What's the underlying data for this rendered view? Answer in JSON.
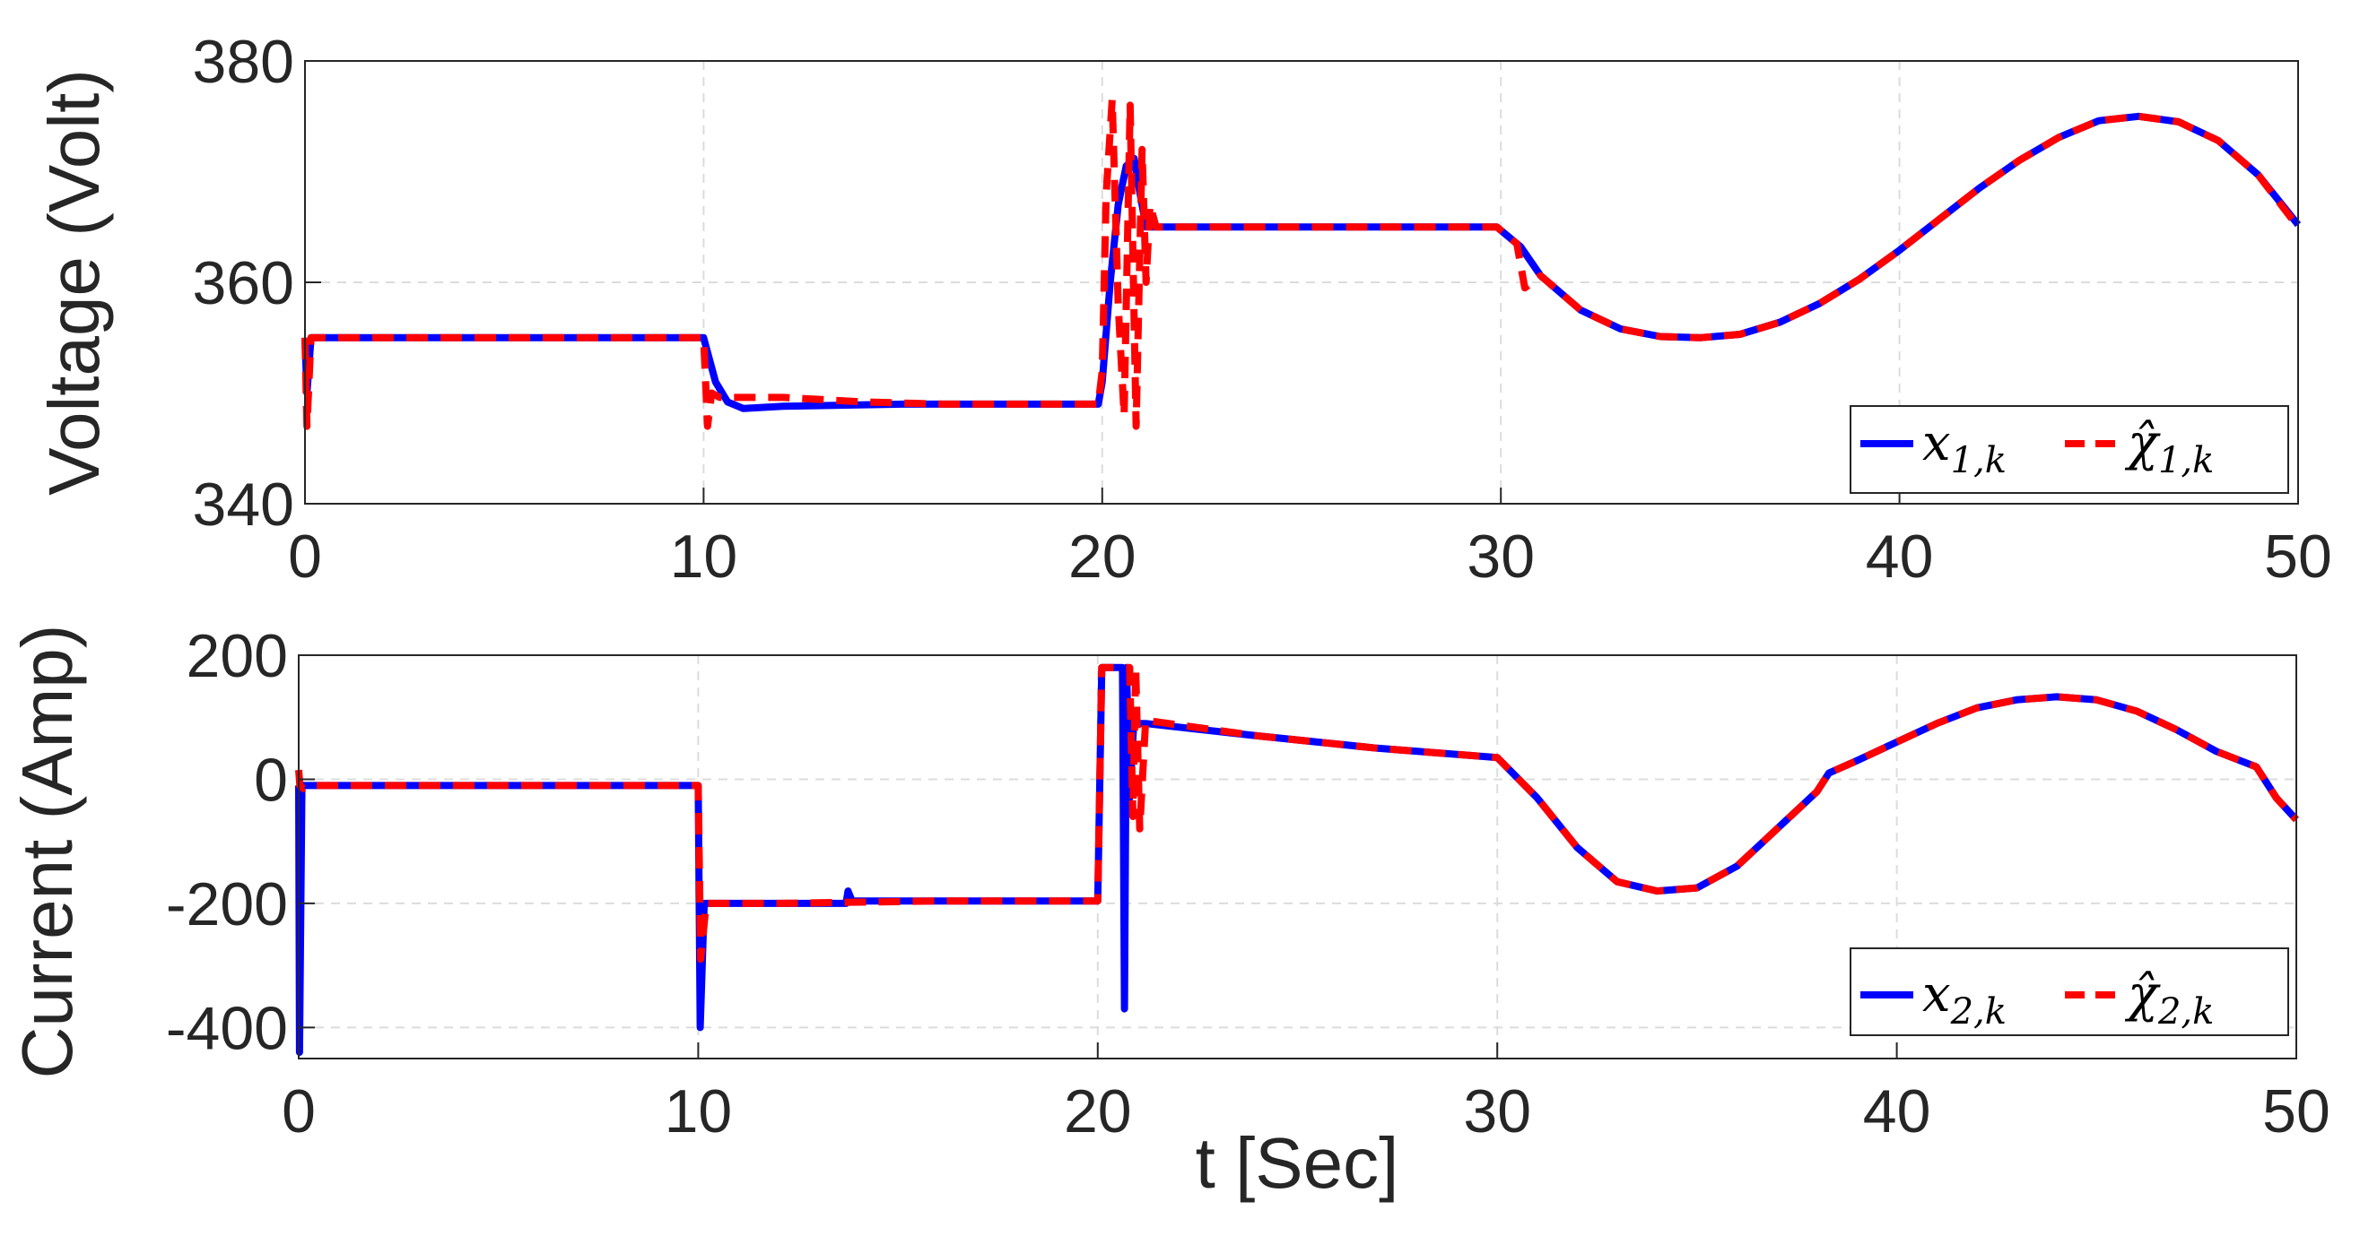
{
  "chart_data": [
    {
      "type": "line",
      "title": "",
      "xlabel": "",
      "ylabel": "Voltage (Volt)",
      "xlim": [
        0,
        50
      ],
      "ylim": [
        340,
        380
      ],
      "x_ticks": [
        "0",
        "10",
        "20",
        "30",
        "40",
        "50"
      ],
      "y_ticks": [
        "340",
        "360",
        "380"
      ],
      "grid": true,
      "legend_position": "bottom-right",
      "series": [
        {
          "name": "x1,k",
          "legend_main": "x",
          "legend_sub": "1,k",
          "color": "#0000FF",
          "style": "solid",
          "x": [
            0,
            0.05,
            0.15,
            5,
            9.9,
            10.0,
            10.3,
            10.6,
            11,
            12,
            15,
            19.9,
            20.0,
            20.2,
            20.4,
            20.6,
            20.8,
            20.95,
            21.1,
            21.3,
            25,
            29.9,
            30.5,
            31,
            32,
            33,
            34,
            35,
            36,
            37,
            38,
            39,
            40,
            41,
            42,
            43,
            44,
            45,
            46,
            47,
            48,
            49,
            50
          ],
          "values": [
            355,
            350,
            355,
            355,
            355,
            355,
            351,
            349.2,
            348.6,
            348.8,
            349,
            349,
            351,
            360,
            367,
            370.5,
            371.2,
            368,
            365,
            365,
            365,
            365,
            363.2,
            360.6,
            357.5,
            355.8,
            355.1,
            355,
            355.3,
            356.4,
            358.1,
            360.3,
            362.9,
            365.7,
            368.5,
            371,
            373.1,
            374.6,
            375,
            374.5,
            372.8,
            369.7,
            365.2
          ]
        },
        {
          "name": "χ̂1,k",
          "legend_main": "χ̂",
          "legend_sub": "1,k",
          "color": "#FF0000",
          "style": "dashed",
          "x": [
            0,
            0.05,
            0.15,
            5,
            9.9,
            10.0,
            10.1,
            10.2,
            10.4,
            12,
            14,
            16,
            19.9,
            20.0,
            20.1,
            20.25,
            20.4,
            20.55,
            20.7,
            20.85,
            21.0,
            21.1,
            21.2,
            21.35,
            25,
            29.9,
            30.4,
            30.6,
            31,
            32,
            33,
            34,
            35,
            36,
            37,
            38,
            39,
            40,
            41,
            42,
            43,
            44,
            45,
            46,
            47,
            48,
            49,
            50
          ],
          "values": [
            355,
            347,
            355,
            355,
            355,
            355,
            347,
            350,
            349.6,
            349.6,
            349.2,
            349,
            349,
            352,
            368,
            376.5,
            358,
            348,
            376,
            347,
            372,
            360,
            367,
            365,
            365,
            365,
            363.5,
            359.5,
            360.6,
            357.5,
            355.8,
            355.1,
            355,
            355.3,
            356.4,
            358.1,
            360.3,
            362.9,
            365.7,
            368.5,
            371,
            373.1,
            374.6,
            375,
            374.5,
            372.8,
            369.7,
            365
          ]
        }
      ]
    },
    {
      "type": "line",
      "title": "",
      "xlabel": "t [Sec]",
      "ylabel": "Current (Amp)",
      "xlim": [
        0,
        50
      ],
      "ylim": [
        -450,
        200
      ],
      "x_ticks": [
        "0",
        "10",
        "20",
        "30",
        "40",
        "50"
      ],
      "y_ticks": [
        "-400",
        "-200",
        "0",
        "200"
      ],
      "grid": true,
      "legend_position": "bottom-right",
      "series": [
        {
          "name": "x2,k",
          "legend_main": "x",
          "legend_sub": "2,k",
          "color": "#0000FF",
          "style": "solid",
          "x": [
            0,
            0.02,
            0.08,
            0.2,
            5,
            9.9,
            10.0,
            10.05,
            10.15,
            12,
            13.7,
            13.75,
            13.85,
            16,
            19.9,
            20.0,
            20.1,
            20.5,
            20.62,
            20.67,
            20.72,
            20.8,
            20.9,
            21.0,
            21.2,
            24,
            27,
            30,
            31,
            32,
            33,
            34,
            35,
            36,
            37,
            38,
            38.3,
            39,
            40,
            41,
            42,
            43,
            44,
            45,
            46,
            47,
            48,
            49,
            49.5,
            50
          ],
          "values": [
            -10,
            -440,
            -10,
            -10,
            -10,
            -10,
            -10,
            -400,
            -200,
            -200,
            -200,
            -180,
            -196,
            -196,
            -196,
            -196,
            180,
            180,
            180,
            -370,
            180,
            -30,
            90,
            90,
            90,
            70,
            50,
            35,
            -30,
            -110,
            -165,
            -180,
            -175,
            -140,
            -80,
            -20,
            10,
            30,
            60,
            90,
            115,
            128,
            133,
            128,
            110,
            80,
            45,
            20,
            -30,
            -65
          ]
        },
        {
          "name": "χ̂2,k",
          "legend_main": "χ̂",
          "legend_sub": "2,k",
          "color": "#FF0000",
          "style": "dashed",
          "x": [
            0,
            0.03,
            0.12,
            0.3,
            5,
            9.9,
            10.0,
            10.06,
            10.2,
            12,
            16,
            19.9,
            20.0,
            20.1,
            20.8,
            20.88,
            20.95,
            21.05,
            21.2,
            24,
            27,
            30,
            31,
            32,
            33,
            34,
            35,
            36,
            37,
            38,
            38.3,
            39,
            40,
            41,
            42,
            43,
            44,
            45,
            46,
            47,
            48,
            49,
            49.5,
            50
          ],
          "values": [
            15,
            -10,
            -15,
            -10,
            -10,
            -10,
            -10,
            -290,
            -200,
            -200,
            -196,
            -196,
            -196,
            180,
            180,
            -60,
            180,
            -80,
            95,
            70,
            50,
            35,
            -30,
            -110,
            -165,
            -180,
            -175,
            -140,
            -80,
            -20,
            10,
            30,
            60,
            90,
            115,
            128,
            133,
            128,
            110,
            80,
            45,
            20,
            -30,
            -65
          ]
        }
      ]
    }
  ]
}
